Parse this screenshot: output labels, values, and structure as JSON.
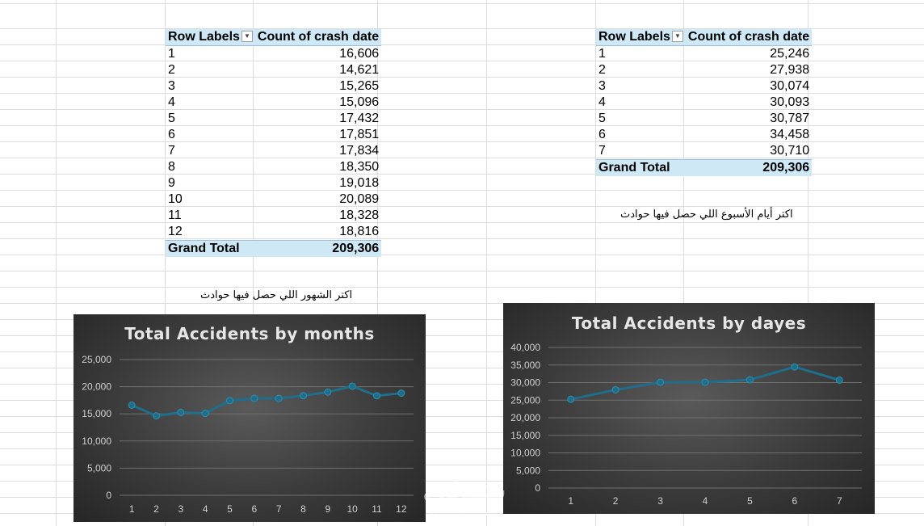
{
  "pivot_months": {
    "header_row_label": "Row Labels",
    "header_count": "Count of crash date",
    "rows": [
      {
        "label": "1",
        "value": "16,606"
      },
      {
        "label": "2",
        "value": "14,621"
      },
      {
        "label": "3",
        "value": "15,265"
      },
      {
        "label": "4",
        "value": "15,096"
      },
      {
        "label": "5",
        "value": "17,432"
      },
      {
        "label": "6",
        "value": "17,851"
      },
      {
        "label": "7",
        "value": "17,834"
      },
      {
        "label": "8",
        "value": "18,350"
      },
      {
        "label": "9",
        "value": "19,018"
      },
      {
        "label": "10",
        "value": "20,089"
      },
      {
        "label": "11",
        "value": "18,328"
      },
      {
        "label": "12",
        "value": "18,816"
      }
    ],
    "total_label": "Grand Total",
    "total_value": "209,306"
  },
  "pivot_days": {
    "header_row_label": "Row Labels",
    "header_count": "Count of crash date",
    "rows": [
      {
        "label": "1",
        "value": "25,246"
      },
      {
        "label": "2",
        "value": "27,938"
      },
      {
        "label": "3",
        "value": "30,074"
      },
      {
        "label": "4",
        "value": "30,093"
      },
      {
        "label": "5",
        "value": "30,787"
      },
      {
        "label": "6",
        "value": "34,458"
      },
      {
        "label": "7",
        "value": "30,710"
      }
    ],
    "total_label": "Grand Total",
    "total_value": "209,306"
  },
  "notes": {
    "months_note": "اكتر الشهور اللي حصل فيها حوادث",
    "days_note": "اكتر أيام الأسبوع اللي حصل فيها حوادث"
  },
  "watermark": {
    "arabic": "نفذلي",
    "latin": "nafezly.com"
  },
  "colors": {
    "line": "#1f6e8c",
    "marker": "#1f6e8c",
    "header_fill": "#cfe8f6"
  },
  "chart_data": [
    {
      "type": "line",
      "title": "Total Accidents by months",
      "categories": [
        "1",
        "2",
        "3",
        "4",
        "5",
        "6",
        "7",
        "8",
        "9",
        "10",
        "11",
        "12"
      ],
      "values": [
        16606,
        14621,
        15265,
        15096,
        17432,
        17851,
        17834,
        18350,
        19018,
        20089,
        18328,
        18816
      ],
      "ylim": [
        0,
        25000
      ],
      "yticks": [
        "0",
        "5,000",
        "10,000",
        "15,000",
        "20,000",
        "25,000"
      ],
      "grid": true,
      "legend": "none"
    },
    {
      "type": "line",
      "title": "Total Accidents by dayes",
      "categories": [
        "1",
        "2",
        "3",
        "4",
        "5",
        "6",
        "7"
      ],
      "values": [
        25246,
        27938,
        30074,
        30093,
        30787,
        34458,
        30710
      ],
      "ylim": [
        0,
        40000
      ],
      "yticks": [
        "0",
        "5,000",
        "10,000",
        "15,000",
        "20,000",
        "25,000",
        "30,000",
        "35,000",
        "40,000"
      ],
      "grid": true,
      "legend": "none"
    }
  ]
}
